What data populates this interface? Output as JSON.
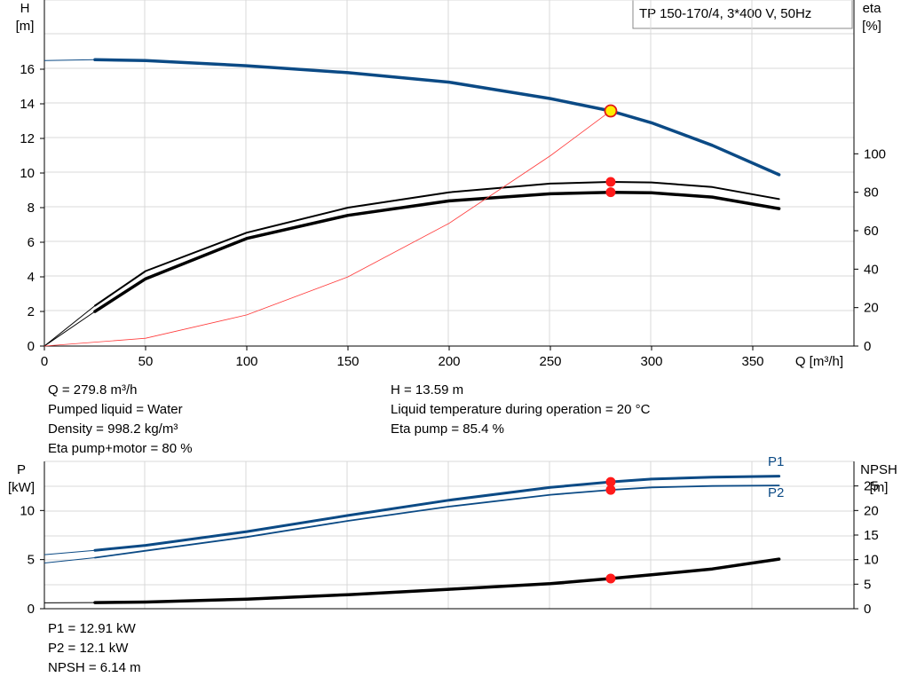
{
  "title": "TP 150-170/4, 3*400 V, 50Hz",
  "chart_data": [
    {
      "type": "line",
      "name": "head-efficiency",
      "xlabel": "Q [m³/h]",
      "ylabel": "H\n[m]",
      "ylabel_right": "eta\n[%]",
      "xlim": [
        0,
        400
      ],
      "ylim": [
        0,
        20
      ],
      "ylim_right": [
        0,
        180
      ],
      "xticks": [
        0,
        50,
        100,
        150,
        200,
        250,
        300,
        350
      ],
      "yticks": [
        0,
        2,
        4,
        6,
        8,
        10,
        12,
        14,
        16
      ],
      "yticks_right": [
        0,
        20,
        40,
        60,
        80,
        100
      ],
      "grid": true,
      "series": [
        {
          "key": "H",
          "axis": "left",
          "color": "#0b4a85",
          "width": 3.5,
          "x": [
            0,
            25,
            50,
            100,
            150,
            200,
            250,
            279.8,
            300,
            330,
            363
          ],
          "y": [
            16.5,
            16.55,
            16.5,
            16.2,
            15.8,
            15.25,
            14.3,
            13.59,
            12.9,
            11.6,
            9.9
          ]
        },
        {
          "key": "eta_pump",
          "axis": "right",
          "color": "#000000",
          "width": 2,
          "x": [
            0,
            25,
            50,
            100,
            150,
            200,
            250,
            279.8,
            300,
            330,
            363
          ],
          "y": [
            0,
            21,
            39,
            59,
            72,
            80,
            84.5,
            85.4,
            85.1,
            82.7,
            76.5
          ]
        },
        {
          "key": "eta_total",
          "axis": "right",
          "color": "#000000",
          "width": 3.5,
          "x": [
            0,
            25,
            50,
            100,
            150,
            200,
            250,
            279.8,
            300,
            330,
            363
          ],
          "y": [
            0,
            18,
            35,
            56,
            68,
            75.5,
            79.2,
            80,
            79.7,
            77.5,
            71.5
          ]
        },
        {
          "key": "system",
          "axis": "left",
          "color": "#ff3a3a",
          "width": 0.8,
          "x": [
            0,
            50,
            100,
            150,
            200,
            250,
            279.8
          ],
          "y": [
            0,
            0.45,
            1.8,
            4.0,
            7.1,
            11.0,
            13.59
          ]
        }
      ],
      "operating_points": [
        {
          "x": 279.8,
          "y": 13.59,
          "axis": "left",
          "style": "yellow"
        },
        {
          "x": 279.8,
          "y": 85.4,
          "axis": "right",
          "style": "red"
        },
        {
          "x": 279.8,
          "y": 80,
          "axis": "right",
          "style": "red"
        }
      ]
    },
    {
      "type": "line",
      "name": "power-npsh",
      "ylabel": "P\n[kW]",
      "ylabel_right": "NPSH\n[m]",
      "xlim": [
        0,
        400
      ],
      "ylim": [
        0,
        15
      ],
      "ylim_right": [
        0,
        30
      ],
      "yticks": [
        0,
        5,
        10
      ],
      "yticks_right": [
        0,
        5,
        10,
        15,
        20,
        25
      ],
      "grid": true,
      "series": [
        {
          "name": "P1",
          "axis": "left",
          "color": "#0b4a85",
          "width": 3,
          "x": [
            0,
            25,
            50,
            100,
            150,
            200,
            250,
            279.8,
            300,
            330,
            363
          ],
          "y": [
            5.5,
            5.95,
            6.45,
            7.85,
            9.5,
            11.05,
            12.35,
            12.91,
            13.2,
            13.4,
            13.5
          ]
        },
        {
          "name": "P2",
          "axis": "left",
          "color": "#0b4a85",
          "width": 1.8,
          "x": [
            0,
            25,
            50,
            100,
            150,
            200,
            250,
            279.8,
            300,
            330,
            363
          ],
          "y": [
            4.65,
            5.2,
            5.9,
            7.3,
            8.95,
            10.4,
            11.6,
            12.1,
            12.35,
            12.5,
            12.55
          ]
        },
        {
          "key": "NPSH",
          "axis": "right",
          "color": "#000000",
          "width": 3.5,
          "x": [
            0,
            25,
            50,
            100,
            150,
            200,
            250,
            279.8,
            300,
            330,
            363
          ],
          "y": [
            1.2,
            1.25,
            1.35,
            1.95,
            2.85,
            3.95,
            5.1,
            6.14,
            6.9,
            8.1,
            10.1
          ]
        }
      ],
      "operating_points": [
        {
          "x": 279.8,
          "y": 12.91,
          "axis": "left",
          "style": "red"
        },
        {
          "x": 279.8,
          "y": 12.1,
          "axis": "left",
          "style": "red"
        },
        {
          "x": 279.8,
          "y": 6.14,
          "axis": "right",
          "style": "red"
        }
      ]
    }
  ],
  "info_top_left": [
    "Q = 279.8 m³/h",
    "Pumped liquid = Water",
    "Density = 998.2 kg/m³",
    "Eta pump+motor = 80 %"
  ],
  "info_top_right": [
    "H = 13.59 m",
    "Liquid temperature during operation = 20 °C",
    "Eta pump = 85.4 %"
  ],
  "info_bottom": [
    "P1 = 12.91 kW",
    "P2 = 12.1 kW",
    "NPSH = 6.14 m"
  ]
}
